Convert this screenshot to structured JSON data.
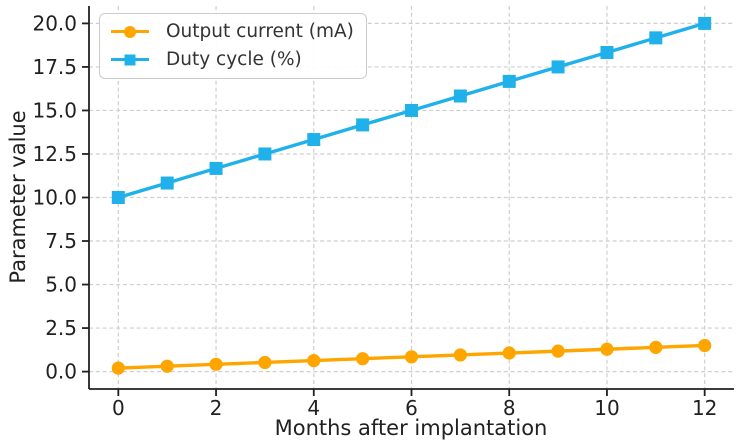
{
  "chart_data": {
    "type": "line",
    "xlabel": "Months after implantation",
    "ylabel": "Parameter value",
    "x": [
      0,
      1,
      2,
      3,
      4,
      5,
      6,
      7,
      8,
      9,
      10,
      11,
      12
    ],
    "series": [
      {
        "name": "Output current (mA)",
        "color": "#FFA500",
        "marker": "circle",
        "values": [
          0.2,
          0.308,
          0.417,
          0.525,
          0.633,
          0.742,
          0.85,
          0.958,
          1.067,
          1.175,
          1.283,
          1.392,
          1.5
        ]
      },
      {
        "name": "Duty cycle (%)",
        "color": "#20B1EA",
        "marker": "square",
        "values": [
          10.0,
          10.83,
          11.67,
          12.5,
          13.33,
          14.17,
          15.0,
          15.83,
          16.67,
          17.5,
          18.33,
          19.17,
          20.0
        ]
      }
    ],
    "xlim": [
      -0.6,
      12.6
    ],
    "ylim": [
      -1,
      21
    ],
    "xticks": [
      "0",
      "2",
      "4",
      "6",
      "8",
      "10",
      "12"
    ],
    "xtick_values": [
      0,
      2,
      4,
      6,
      8,
      10,
      12
    ],
    "yticks": [
      "0.0",
      "2.5",
      "5.0",
      "7.5",
      "10.0",
      "12.5",
      "15.0",
      "17.5",
      "20.0"
    ],
    "ytick_values": [
      0,
      2.5,
      5,
      7.5,
      10,
      12.5,
      15,
      17.5,
      20
    ],
    "grid": true,
    "legend_position": "upper-left"
  },
  "colors": {
    "grid": "#cfcfcf",
    "spine": "#212121",
    "tick_text": "#212121",
    "legend_text": "#333333",
    "legend_border": "#cccccc",
    "background": "#ffffff"
  }
}
